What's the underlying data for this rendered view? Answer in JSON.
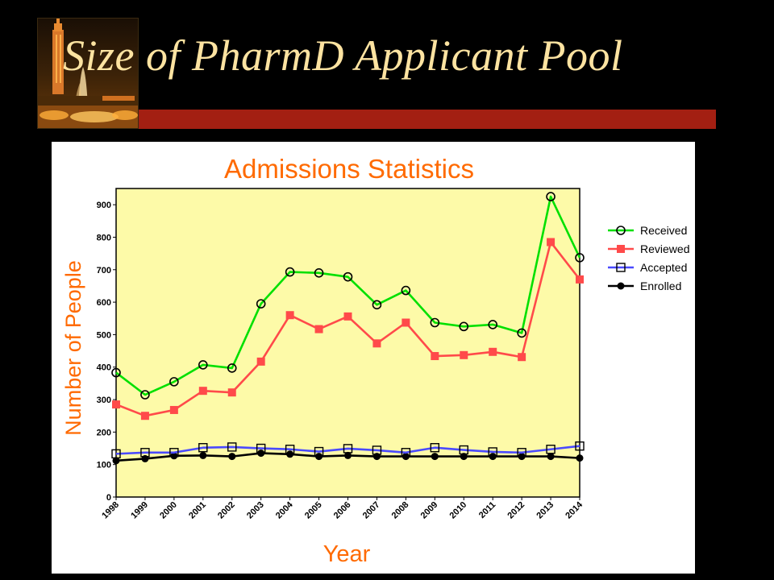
{
  "slide": {
    "title": "Size of PharmD Applicant Pool"
  },
  "colors": {
    "background": "#000000",
    "title": "#fde3a1",
    "accent_bar": "#a31f12",
    "plot_bg": "#fdfaa8",
    "chart_text": "#ff6a00"
  },
  "chart_data": {
    "type": "line",
    "title": "Admissions Statistics",
    "xlabel": "Year",
    "ylabel": "Number of People",
    "x": [
      "1998",
      "1999",
      "2000",
      "2001",
      "2002",
      "2003",
      "2004",
      "2005",
      "2006",
      "2007",
      "2008",
      "2009",
      "2010",
      "2011",
      "2012",
      "2013",
      "2014"
    ],
    "ylim": [
      0,
      950
    ],
    "yticks": [
      0,
      100,
      200,
      300,
      400,
      500,
      600,
      700,
      800,
      900
    ],
    "legend_position": "right",
    "series": [
      {
        "name": "Received",
        "color": "#00e000",
        "marker": "open-circle",
        "values": [
          383,
          315,
          355,
          407,
          397,
          595,
          693,
          690,
          678,
          592,
          636,
          537,
          525,
          531,
          505,
          925,
          737
        ]
      },
      {
        "name": "Reviewed",
        "color": "#ff4a4a",
        "marker": "filled-square",
        "values": [
          285,
          250,
          268,
          327,
          322,
          417,
          560,
          517,
          556,
          473,
          537,
          434,
          437,
          447,
          431,
          785,
          670
        ]
      },
      {
        "name": "Accepted",
        "color": "#4a4aff",
        "marker": "open-square",
        "values": [
          133,
          137,
          137,
          152,
          154,
          150,
          147,
          140,
          149,
          144,
          137,
          152,
          145,
          139,
          137,
          147,
          157
        ]
      },
      {
        "name": "Enrolled",
        "color": "#000000",
        "marker": "filled-circle",
        "values": [
          112,
          118,
          127,
          128,
          125,
          135,
          132,
          125,
          128,
          125,
          125,
          125,
          125,
          125,
          125,
          125,
          120
        ]
      }
    ]
  }
}
